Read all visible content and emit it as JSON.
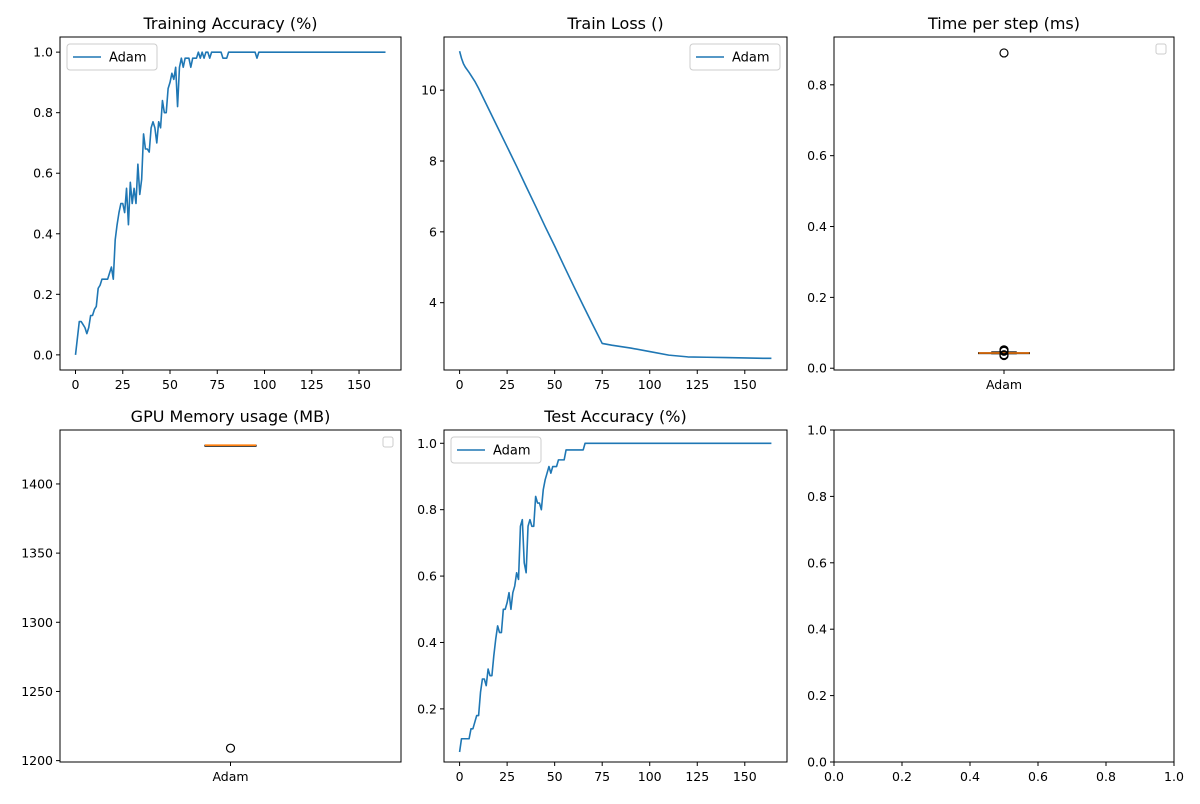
{
  "colors": {
    "series": "#1f77b4",
    "median": "#ff7f0e",
    "axis": "#000000",
    "legend_border": "#cccccc"
  },
  "chart_data": [
    {
      "id": "train-acc",
      "type": "line",
      "title": "Training Accuracy (%)",
      "xlim": [
        -8.2,
        172.2
      ],
      "ylim": [
        -0.05,
        1.05
      ],
      "xticks": [
        0,
        25,
        50,
        75,
        100,
        125,
        150
      ],
      "xtick_labels": [
        "0",
        "25",
        "50",
        "75",
        "100",
        "125",
        "150"
      ],
      "yticks": [
        0,
        0.2,
        0.4,
        0.6,
        0.8,
        1.0
      ],
      "ytick_labels": [
        "0.0",
        "0.2",
        "0.4",
        "0.6",
        "0.8",
        "1.0"
      ],
      "legend": "top-left",
      "series": [
        {
          "name": "Adam",
          "x": [
            0,
            2,
            3,
            4,
            5,
            6,
            7,
            8,
            9,
            10,
            11,
            12,
            13,
            14,
            15,
            16,
            17,
            18,
            19,
            20,
            21,
            22,
            23,
            24,
            25,
            26,
            27,
            28,
            29,
            30,
            31,
            32,
            33,
            34,
            35,
            36,
            37,
            38,
            39,
            40,
            41,
            42,
            43,
            44,
            45,
            46,
            47,
            48,
            49,
            50,
            51,
            52,
            53,
            54,
            55,
            56,
            57,
            58,
            59,
            60,
            61,
            62,
            63,
            64,
            65,
            66,
            67,
            68,
            69,
            70,
            71,
            72,
            73,
            74,
            75,
            76,
            77,
            78,
            79,
            80,
            81,
            82,
            83,
            84,
            85,
            86,
            90,
            95,
            96,
            97,
            98,
            100,
            110,
            120,
            130,
            140,
            150,
            160,
            164
          ],
          "y": [
            0,
            0.11,
            0.11,
            0.1,
            0.09,
            0.07,
            0.09,
            0.13,
            0.13,
            0.15,
            0.16,
            0.22,
            0.23,
            0.25,
            0.25,
            0.25,
            0.25,
            0.27,
            0.29,
            0.25,
            0.38,
            0.43,
            0.47,
            0.5,
            0.5,
            0.47,
            0.55,
            0.43,
            0.57,
            0.5,
            0.55,
            0.5,
            0.63,
            0.53,
            0.58,
            0.73,
            0.68,
            0.68,
            0.67,
            0.75,
            0.77,
            0.75,
            0.7,
            0.77,
            0.75,
            0.84,
            0.8,
            0.8,
            0.88,
            0.9,
            0.93,
            0.91,
            0.95,
            0.82,
            0.95,
            0.98,
            0.95,
            0.98,
            0.98,
            0.98,
            0.95,
            0.98,
            0.98,
            0.98,
            1.0,
            0.98,
            1.0,
            0.98,
            1.0,
            1.0,
            0.98,
            1.0,
            1.0,
            1.0,
            1.0,
            1.0,
            1.0,
            0.98,
            0.98,
            0.98,
            1.0,
            1.0,
            1.0,
            1.0,
            1.0,
            1.0,
            1.0,
            1.0,
            0.98,
            1.0,
            1.0,
            1.0,
            1.0,
            1.0,
            1.0,
            1.0,
            1.0,
            1.0,
            1.0
          ]
        }
      ]
    },
    {
      "id": "train-loss",
      "type": "line",
      "title": "Train Loss ()",
      "xlim": [
        -8.2,
        172.2
      ],
      "ylim": [
        2.1,
        11.5
      ],
      "xticks": [
        0,
        25,
        50,
        75,
        100,
        125,
        150
      ],
      "xtick_labels": [
        "0",
        "25",
        "50",
        "75",
        "100",
        "125",
        "150"
      ],
      "yticks": [
        4,
        6,
        8,
        10
      ],
      "ytick_labels": [
        "4",
        "6",
        "8",
        "10"
      ],
      "legend": "top-right",
      "series": [
        {
          "name": "Adam",
          "x": [
            0,
            1,
            2,
            3,
            5,
            8,
            10,
            15,
            20,
            25,
            30,
            35,
            40,
            45,
            50,
            55,
            60,
            65,
            70,
            75,
            80,
            90,
            100,
            110,
            120,
            130,
            140,
            150,
            160,
            164
          ],
          "y": [
            11.1,
            10.9,
            10.75,
            10.65,
            10.5,
            10.25,
            10.05,
            9.5,
            8.95,
            8.4,
            7.85,
            7.28,
            6.72,
            6.15,
            5.6,
            5.03,
            4.47,
            3.92,
            3.38,
            2.85,
            2.8,
            2.72,
            2.62,
            2.52,
            2.47,
            2.46,
            2.45,
            2.44,
            2.43,
            2.43
          ]
        }
      ]
    },
    {
      "id": "time-per-step",
      "type": "box",
      "title": "Time per step (ms)",
      "categories": [
        "Adam"
      ],
      "ylim": [
        -0.005,
        0.935
      ],
      "yticks": [
        0,
        0.2,
        0.4,
        0.6,
        0.8
      ],
      "ytick_labels": [
        "0.0",
        "0.2",
        "0.4",
        "0.6",
        "0.8"
      ],
      "legend": "empty",
      "box": {
        "q1": 0.042,
        "median": 0.043,
        "q3": 0.044,
        "whisker_low": 0.041,
        "whisker_high": 0.046,
        "fliers": [
          0.89,
          0.036,
          0.038,
          0.048,
          0.05,
          0.052
        ]
      }
    },
    {
      "id": "gpu-memory",
      "type": "box",
      "title": "GPU Memory usage (MB)",
      "categories": [
        "Adam"
      ],
      "ylim": [
        1199,
        1439
      ],
      "yticks": [
        1200,
        1250,
        1300,
        1350,
        1400
      ],
      "ytick_labels": [
        "1200",
        "1250",
        "1300",
        "1350",
        "1400"
      ],
      "legend": "empty",
      "box": {
        "q1": 1428,
        "median": 1428,
        "q3": 1428,
        "whisker_low": 1428,
        "whisker_high": 1428,
        "fliers": [
          1209
        ]
      }
    },
    {
      "id": "test-acc",
      "type": "line",
      "title": "Test Accuracy (%)",
      "xlim": [
        -8.2,
        172.2
      ],
      "ylim": [
        0.04,
        1.04
      ],
      "xticks": [
        0,
        25,
        50,
        75,
        100,
        125,
        150
      ],
      "xtick_labels": [
        "0",
        "25",
        "50",
        "75",
        "100",
        "125",
        "150"
      ],
      "yticks": [
        0.2,
        0.4,
        0.6,
        0.8,
        1.0
      ],
      "ytick_labels": [
        "0.2",
        "0.4",
        "0.6",
        "0.8",
        "1.0"
      ],
      "legend": "top-left",
      "series": [
        {
          "name": "Adam",
          "x": [
            0,
            1,
            2,
            3,
            4,
            5,
            6,
            7,
            8,
            9,
            10,
            11,
            12,
            13,
            14,
            15,
            16,
            17,
            18,
            19,
            20,
            21,
            22,
            23,
            24,
            25,
            26,
            27,
            28,
            29,
            30,
            31,
            32,
            33,
            34,
            35,
            36,
            37,
            38,
            39,
            40,
            41,
            42,
            43,
            44,
            45,
            46,
            47,
            48,
            49,
            50,
            51,
            52,
            53,
            54,
            55,
            56,
            57,
            58,
            59,
            60,
            61,
            62,
            63,
            64,
            65,
            66,
            67,
            70,
            80,
            100,
            120,
            140,
            164
          ],
          "y": [
            0.07,
            0.11,
            0.11,
            0.11,
            0.11,
            0.11,
            0.14,
            0.14,
            0.16,
            0.18,
            0.18,
            0.25,
            0.29,
            0.29,
            0.27,
            0.32,
            0.3,
            0.3,
            0.36,
            0.41,
            0.45,
            0.43,
            0.43,
            0.5,
            0.5,
            0.52,
            0.55,
            0.5,
            0.55,
            0.57,
            0.61,
            0.59,
            0.75,
            0.77,
            0.64,
            0.61,
            0.75,
            0.77,
            0.75,
            0.75,
            0.84,
            0.82,
            0.82,
            0.8,
            0.86,
            0.89,
            0.91,
            0.93,
            0.91,
            0.93,
            0.93,
            0.93,
            0.95,
            0.95,
            0.95,
            0.95,
            0.98,
            0.98,
            0.98,
            0.98,
            0.98,
            0.98,
            0.98,
            0.98,
            0.98,
            0.98,
            1.0,
            1.0,
            1.0,
            1.0,
            1.0,
            1.0,
            1.0,
            1.0
          ]
        }
      ]
    },
    {
      "id": "empty",
      "type": "empty",
      "title": "",
      "xlim": [
        0,
        1
      ],
      "ylim": [
        0,
        1
      ],
      "xticks": [
        0,
        0.2,
        0.4,
        0.6,
        0.8,
        1.0
      ],
      "xtick_labels": [
        "0.0",
        "0.2",
        "0.4",
        "0.6",
        "0.8",
        "1.0"
      ],
      "yticks": [
        0,
        0.2,
        0.4,
        0.6,
        0.8,
        1.0
      ],
      "ytick_labels": [
        "0.0",
        "0.2",
        "0.4",
        "0.6",
        "0.8",
        "1.0"
      ]
    }
  ]
}
